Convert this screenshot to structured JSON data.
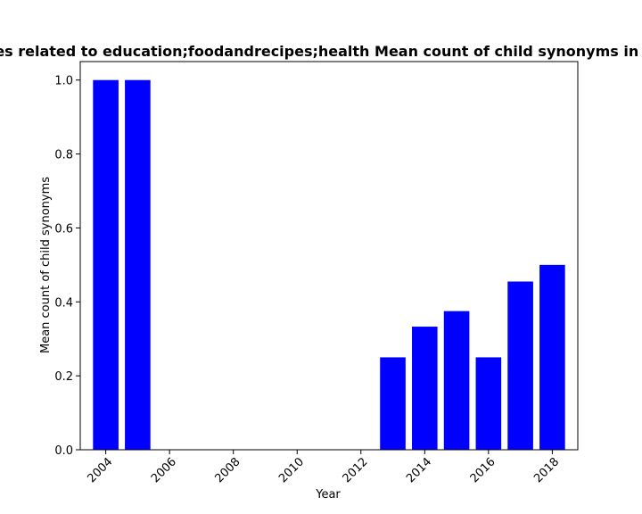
{
  "chart_data": {
    "type": "bar",
    "title": "Sites related to education;foodandrecipes;health Mean count of child synonyms in page",
    "xlabel": "Year",
    "ylabel": "Mean count of child synonyms",
    "x": [
      2004,
      2005,
      2013,
      2014,
      2015,
      2016,
      2017,
      2018
    ],
    "values": [
      1.0,
      1.0,
      0.25,
      0.333,
      0.375,
      0.25,
      0.455,
      0.5
    ],
    "xlim": [
      2003.2,
      2018.8
    ],
    "ylim": [
      0,
      1.05
    ],
    "xticks": [
      2004,
      2006,
      2008,
      2010,
      2012,
      2014,
      2016,
      2018
    ],
    "yticks": [
      0.0,
      0.2,
      0.4,
      0.6,
      0.8,
      1.0
    ],
    "ytick_labels": [
      "0.0",
      "0.2",
      "0.4",
      "0.6",
      "0.8",
      "1.0"
    ],
    "bar_color": "#0000ff",
    "grid": false,
    "legend": false
  }
}
